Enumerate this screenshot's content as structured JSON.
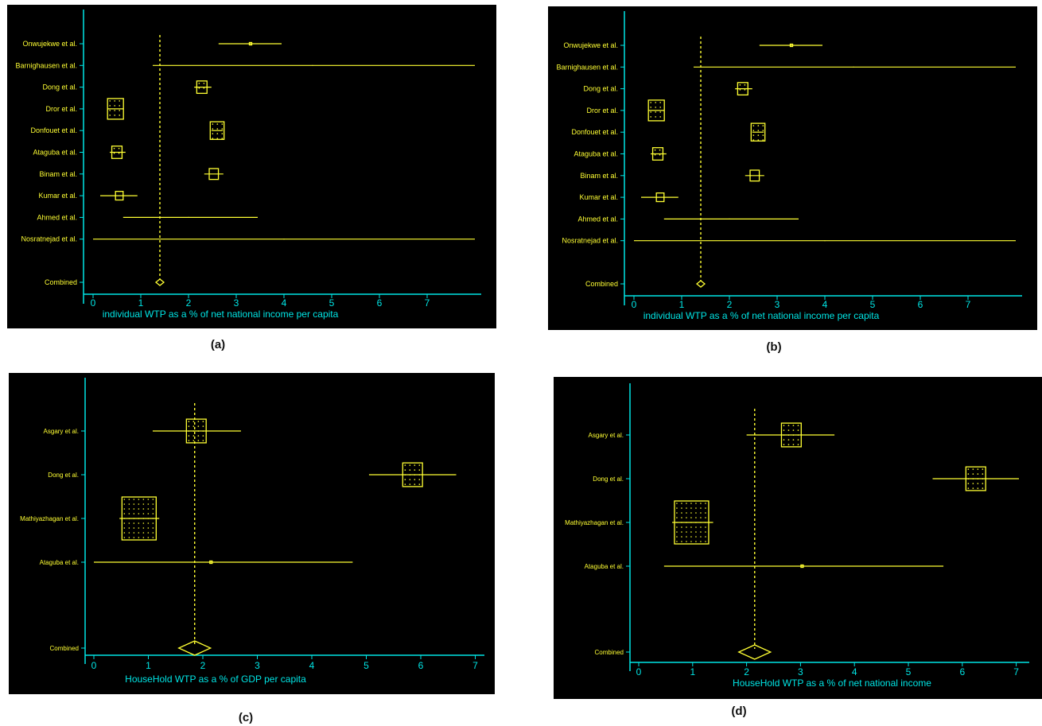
{
  "colors": {
    "background": "#000000",
    "axis": "#00e5e5",
    "marks": "#ffff33",
    "page": "#ffffff"
  },
  "chart_data": [
    {
      "id": "a",
      "caption": "(a)",
      "type": "forest",
      "xlabel": "individual WTP as a % of net national income per capita",
      "xticks": [
        0,
        1,
        2,
        3,
        4,
        5,
        6,
        7
      ],
      "xlim": [
        0,
        8
      ],
      "pooled_reference": 1.4,
      "studies": [
        {
          "label": "Onwujekwe et al.",
          "est": 3.3,
          "lo": 2.63,
          "hi": 3.95,
          "weight": 0.1
        },
        {
          "label": "Barnighausen et al.",
          "est": 4.6,
          "lo": 1.25,
          "hi": 8.0,
          "weight": 0.0
        },
        {
          "label": "Dong et al.",
          "est": 2.28,
          "lo": 2.12,
          "hi": 2.48,
          "weight": 0.45
        },
        {
          "label": "Dror et al.",
          "est": 0.47,
          "lo": 0.3,
          "hi": 0.64,
          "weight": 1.0
        },
        {
          "label": "Donfouet et al.",
          "est": 2.6,
          "lo": 2.48,
          "hi": 2.72,
          "weight": 0.8
        },
        {
          "label": "Ataguba et al.",
          "est": 0.5,
          "lo": 0.35,
          "hi": 0.68,
          "weight": 0.45
        },
        {
          "label": "Binam et al.",
          "est": 2.53,
          "lo": 2.33,
          "hi": 2.73,
          "weight": 0.35
        },
        {
          "label": "Kumar et al.",
          "est": 0.55,
          "lo": 0.15,
          "hi": 0.93,
          "weight": 0.2
        },
        {
          "label": "Ahmed et al.",
          "est": 2.0,
          "lo": 0.63,
          "hi": 3.45,
          "weight": 0.0
        },
        {
          "label": "Nosratnejad et al.",
          "est": 4.0,
          "lo": 0.0,
          "hi": 8.0,
          "weight": 0.0
        }
      ],
      "combined": {
        "label": "Combined",
        "est": 1.4,
        "lo": 1.35,
        "hi": 1.45
      }
    },
    {
      "id": "b",
      "caption": "(b)",
      "type": "forest",
      "xlabel": "individual WTP as a % of net national income per capita",
      "xticks": [
        0,
        1,
        2,
        3,
        4,
        5,
        6,
        7
      ],
      "xlim": [
        0,
        8
      ],
      "pooled_reference": 1.4,
      "studies": [
        {
          "label": "Onwujekwe et al.",
          "est": 3.3,
          "lo": 2.63,
          "hi": 3.95,
          "weight": 0.1
        },
        {
          "label": "Barnighausen et al.",
          "est": 4.6,
          "lo": 1.25,
          "hi": 8.0,
          "weight": 0.0
        },
        {
          "label": "Dong et al.",
          "est": 2.28,
          "lo": 2.12,
          "hi": 2.48,
          "weight": 0.45
        },
        {
          "label": "Dror et al.",
          "est": 0.47,
          "lo": 0.3,
          "hi": 0.64,
          "weight": 1.0
        },
        {
          "label": "Donfouet et al.",
          "est": 2.6,
          "lo": 2.48,
          "hi": 2.72,
          "weight": 0.8
        },
        {
          "label": "Ataguba et al.",
          "est": 0.5,
          "lo": 0.35,
          "hi": 0.68,
          "weight": 0.45
        },
        {
          "label": "Binam et al.",
          "est": 2.53,
          "lo": 2.33,
          "hi": 2.73,
          "weight": 0.35
        },
        {
          "label": "Kumar et al.",
          "est": 0.55,
          "lo": 0.15,
          "hi": 0.93,
          "weight": 0.2
        },
        {
          "label": "Ahmed et al.",
          "est": 2.0,
          "lo": 0.63,
          "hi": 3.45,
          "weight": 0.0
        },
        {
          "label": "Nosratnejad et al.",
          "est": 4.0,
          "lo": 0.0,
          "hi": 8.0,
          "weight": 0.0
        }
      ],
      "combined": {
        "label": "Combined",
        "est": 1.4,
        "lo": 1.35,
        "hi": 1.45
      }
    },
    {
      "id": "c",
      "caption": "(c)",
      "type": "forest",
      "xlabel": "HouseHold WTP as a % of GDP per capita",
      "xticks": [
        0,
        1,
        2,
        3,
        4,
        5,
        6,
        7
      ],
      "xlim": [
        0,
        7
      ],
      "pooled_reference": 1.85,
      "studies": [
        {
          "label": "Asgary et al.",
          "est": 1.88,
          "lo": 1.08,
          "hi": 2.7,
          "weight": 0.45
        },
        {
          "label": "Dong et al.",
          "est": 5.85,
          "lo": 5.05,
          "hi": 6.65,
          "weight": 0.45
        },
        {
          "label": "Mathiyazhagan et al.",
          "est": 0.83,
          "lo": 0.47,
          "hi": 1.2,
          "weight": 1.0
        },
        {
          "label": "Ataguba et al.",
          "est": 2.15,
          "lo": 0.0,
          "hi": 4.75,
          "weight": 0.05
        }
      ],
      "combined": {
        "label": "Combined",
        "est": 1.85,
        "lo": 1.55,
        "hi": 2.15
      }
    },
    {
      "id": "d",
      "caption": "(d)",
      "type": "forest",
      "xlabel": "HouseHold WTP as a % of net national income",
      "xticks": [
        0,
        1,
        2,
        3,
        4,
        5,
        6,
        7
      ],
      "xlim": [
        0,
        7
      ],
      "pooled_reference": 2.15,
      "studies": [
        {
          "label": "Asgary et al.",
          "est": 2.83,
          "lo": 2.0,
          "hi": 3.63,
          "weight": 0.45
        },
        {
          "label": "Dong et al.",
          "est": 6.25,
          "lo": 5.45,
          "hi": 7.05,
          "weight": 0.45
        },
        {
          "label": "Mathiyazhagan et al.",
          "est": 0.98,
          "lo": 0.62,
          "hi": 1.38,
          "weight": 1.0
        },
        {
          "label": "Ataguba et al.",
          "est": 3.03,
          "lo": 0.47,
          "hi": 5.65,
          "weight": 0.05
        }
      ],
      "combined": {
        "label": "Combined",
        "est": 2.15,
        "lo": 1.85,
        "hi": 2.45
      }
    }
  ]
}
